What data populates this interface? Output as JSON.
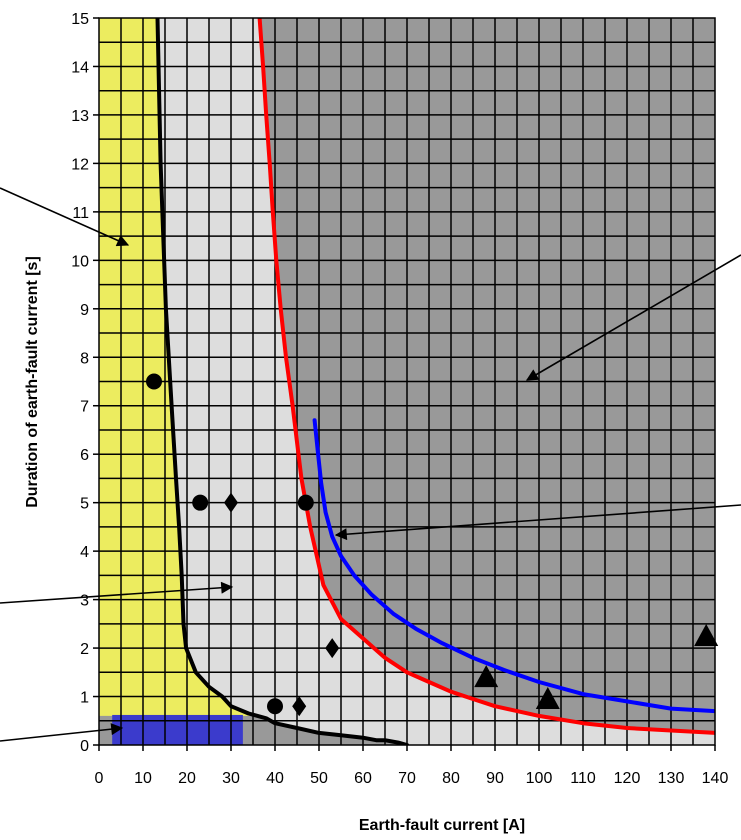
{
  "chart_data": {
    "type": "line",
    "title": "",
    "xlabel": "Earth-fault current [A]",
    "ylabel": "Duration of earth-fault current  [s]",
    "xlim": [
      0,
      140
    ],
    "ylim": [
      0,
      15
    ],
    "x_ticks": [
      0,
      10,
      20,
      30,
      40,
      50,
      60,
      70,
      80,
      90,
      100,
      110,
      120,
      130,
      140
    ],
    "y_ticks": [
      0,
      1,
      2,
      3,
      4,
      5,
      6,
      7,
      8,
      9,
      10,
      11,
      12,
      13,
      14,
      15
    ],
    "grid": true,
    "legend": "none",
    "colors": {
      "plot_bg": "#999999",
      "region_yellow": "#ecec5f",
      "region_light": "#dddddd",
      "region_blue": "#3b3bcc",
      "curve_black": "#000000",
      "curve_red": "#ff0000",
      "curve_blue": "#0000ff",
      "markers": "#000000"
    },
    "regions": [
      {
        "color": "yellow",
        "boundary_x": [
          0,
          13.3,
          14.0,
          15.2,
          16.5,
          17.5,
          18.2,
          18.8,
          19.2,
          19.8,
          22,
          28,
          30,
          34,
          38,
          0
        ],
        "boundary_y": [
          15,
          15,
          12,
          9,
          7,
          5.5,
          4.5,
          3.5,
          2.5,
          2,
          1.5,
          1.0,
          0.8,
          0.65,
          0.6,
          0.6
        ]
      },
      {
        "color": "light-gray",
        "boundary_x": [
          13.3,
          36.5,
          37.3,
          38.0,
          38.8,
          39.5,
          40.3,
          41.3,
          42.5,
          44,
          46,
          48,
          51,
          55,
          60,
          65,
          70,
          75,
          80,
          85,
          90,
          95,
          100,
          110,
          120,
          130,
          140,
          140,
          70,
          60,
          50,
          45,
          40,
          34,
          30,
          28,
          22,
          19.8,
          19.2,
          18.8,
          18.2,
          17.5,
          16.5,
          15.2,
          14.0
        ],
        "boundary_y": [
          15,
          15,
          14,
          13,
          12,
          11,
          10,
          9,
          8,
          7,
          5.5,
          4.5,
          3.3,
          2.6,
          2.2,
          1.8,
          1.5,
          1.3,
          1.1,
          0.95,
          0.8,
          0.7,
          0.6,
          0.45,
          0.35,
          0.3,
          0.25,
          0,
          0,
          0.15,
          0.25,
          0.35,
          0.45,
          0.65,
          0.8,
          1.0,
          1.5,
          2,
          2.5,
          3.5,
          4.5,
          5.5,
          7,
          9,
          12
        ]
      },
      {
        "color": "blue",
        "x_range": [
          3,
          32.7
        ],
        "y_range": [
          0,
          0.62
        ]
      }
    ],
    "series": [
      {
        "color": "black",
        "x": [
          13.3,
          14.0,
          15.2,
          16.5,
          17.5,
          18.2,
          18.8,
          19.2,
          19.8,
          22,
          25,
          28,
          30,
          34,
          38,
          40,
          45,
          50,
          55,
          60,
          63,
          65,
          68,
          70
        ],
        "y": [
          15,
          12,
          9,
          7,
          5.5,
          4.5,
          3.5,
          2.5,
          2,
          1.5,
          1.2,
          1.0,
          0.8,
          0.65,
          0.55,
          0.45,
          0.35,
          0.25,
          0.2,
          0.15,
          0.1,
          0.1,
          0.05,
          0
        ]
      },
      {
        "color": "red",
        "x": [
          36.5,
          37.3,
          38.0,
          38.8,
          39.5,
          40.3,
          41.3,
          42.5,
          44,
          46,
          48,
          51,
          55,
          60,
          65,
          70,
          75,
          80,
          85,
          90,
          95,
          100,
          110,
          120,
          130,
          140
        ],
        "y": [
          15,
          14,
          13,
          12,
          11,
          10,
          9,
          8,
          7,
          5.5,
          4.5,
          3.3,
          2.6,
          2.2,
          1.8,
          1.5,
          1.3,
          1.1,
          0.95,
          0.8,
          0.7,
          0.6,
          0.45,
          0.35,
          0.3,
          0.25
        ]
      },
      {
        "color": "blue",
        "x": [
          49,
          49.8,
          50.5,
          51.5,
          53,
          55,
          58,
          62,
          67,
          72,
          78,
          85,
          92,
          100,
          110,
          120,
          130,
          140
        ],
        "y": [
          6.7,
          6.0,
          5.4,
          4.8,
          4.3,
          3.9,
          3.5,
          3.1,
          2.7,
          2.4,
          2.1,
          1.8,
          1.55,
          1.3,
          1.05,
          0.9,
          0.75,
          0.7
        ]
      }
    ],
    "markers": [
      {
        "shape": "circle",
        "x": 12.5,
        "y": 7.5
      },
      {
        "shape": "circle",
        "x": 23,
        "y": 5
      },
      {
        "shape": "circle",
        "x": 47,
        "y": 5
      },
      {
        "shape": "circle",
        "x": 40,
        "y": 0.8
      },
      {
        "shape": "diamond",
        "x": 30,
        "y": 5
      },
      {
        "shape": "diamond",
        "x": 53,
        "y": 2
      },
      {
        "shape": "diamond",
        "x": 45.5,
        "y": 0.8
      },
      {
        "shape": "triangle",
        "x": 88,
        "y": 1.4
      },
      {
        "shape": "triangle",
        "x": 102,
        "y": 0.95
      },
      {
        "shape": "triangle",
        "x": 138,
        "y": 2.25
      }
    ]
  }
}
